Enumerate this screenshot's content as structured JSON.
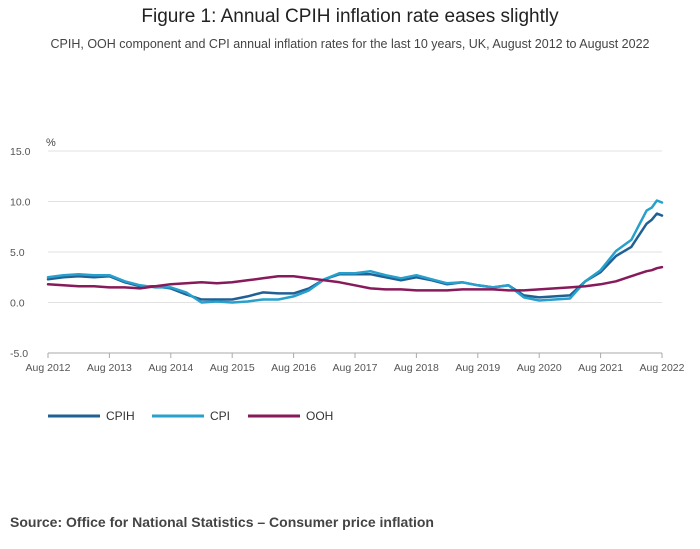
{
  "page": {
    "title": "Figure 1: Annual CPIH inflation rate eases slightly",
    "subtitle": "CPIH, OOH component and CPI annual inflation rates for the last 10 years, UK, August 2012 to August 2022",
    "source": "Source: Office for National Statistics – Consumer price inflation"
  },
  "chart_data": {
    "type": "line",
    "title": "Figure 1: Annual CPIH inflation rate eases slightly",
    "subtitle": "CPIH, OOH component and CPI annual inflation rates for the last 10 years, UK, August 2012 to August 2022",
    "xlabel": "",
    "ylabel": "%",
    "ylim": [
      -5,
      15
    ],
    "yticks": [
      "15.0",
      "10.0",
      "5.0",
      "0.0",
      "-5.0"
    ],
    "xlim": [
      "Aug 2012",
      "Aug 2022"
    ],
    "xticks": [
      "Aug 2012",
      "Aug 2013",
      "Aug 2014",
      "Aug 2015",
      "Aug 2016",
      "Aug 2017",
      "Aug 2018",
      "Aug 2019",
      "Aug 2020",
      "Aug 2021",
      "Aug 2022"
    ],
    "grid": true,
    "legend": "bottom-left",
    "x": [
      "Aug 2012",
      "Nov 2012",
      "Feb 2013",
      "May 2013",
      "Aug 2013",
      "Nov 2013",
      "Feb 2014",
      "May 2014",
      "Aug 2014",
      "Nov 2014",
      "Feb 2015",
      "May 2015",
      "Aug 2015",
      "Nov 2015",
      "Feb 2016",
      "May 2016",
      "Aug 2016",
      "Nov 2016",
      "Feb 2017",
      "May 2017",
      "Aug 2017",
      "Nov 2017",
      "Feb 2018",
      "May 2018",
      "Aug 2018",
      "Nov 2018",
      "Feb 2019",
      "May 2019",
      "Aug 2019",
      "Nov 2019",
      "Feb 2020",
      "May 2020",
      "Aug 2020",
      "Nov 2020",
      "Feb 2021",
      "May 2021",
      "Aug 2021",
      "Nov 2021",
      "Feb 2022",
      "May 2022",
      "Jun 2022",
      "Jul 2022",
      "Aug 2022"
    ],
    "series": [
      {
        "name": "CPIH",
        "color": "#206095",
        "values": [
          2.3,
          2.5,
          2.6,
          2.5,
          2.6,
          2.0,
          1.6,
          1.6,
          1.4,
          0.8,
          0.3,
          0.3,
          0.3,
          0.6,
          1.0,
          0.9,
          0.9,
          1.4,
          2.3,
          2.8,
          2.8,
          2.8,
          2.5,
          2.2,
          2.5,
          2.2,
          1.8,
          2.0,
          1.7,
          1.5,
          1.7,
          0.7,
          0.5,
          0.6,
          0.7,
          2.1,
          3.0,
          4.6,
          5.5,
          7.8,
          8.2,
          8.8,
          8.6
        ]
      },
      {
        "name": "CPI",
        "color": "#27a0cc",
        "values": [
          2.5,
          2.7,
          2.8,
          2.7,
          2.7,
          2.1,
          1.7,
          1.5,
          1.5,
          1.0,
          0.0,
          0.1,
          0.0,
          0.1,
          0.3,
          0.3,
          0.6,
          1.2,
          2.3,
          2.9,
          2.9,
          3.1,
          2.7,
          2.4,
          2.7,
          2.3,
          1.9,
          2.0,
          1.7,
          1.5,
          1.7,
          0.5,
          0.2,
          0.3,
          0.4,
          2.1,
          3.2,
          5.1,
          6.2,
          9.1,
          9.4,
          10.1,
          9.9
        ]
      },
      {
        "name": "OOH",
        "color": "#871a5b",
        "values": [
          1.8,
          1.7,
          1.6,
          1.6,
          1.5,
          1.5,
          1.4,
          1.6,
          1.8,
          1.9,
          2.0,
          1.9,
          2.0,
          2.2,
          2.4,
          2.6,
          2.6,
          2.4,
          2.2,
          2.0,
          1.7,
          1.4,
          1.3,
          1.3,
          1.2,
          1.2,
          1.2,
          1.3,
          1.3,
          1.3,
          1.2,
          1.2,
          1.3,
          1.4,
          1.5,
          1.6,
          1.8,
          2.1,
          2.6,
          3.1,
          3.2,
          3.4,
          3.5
        ]
      }
    ]
  }
}
